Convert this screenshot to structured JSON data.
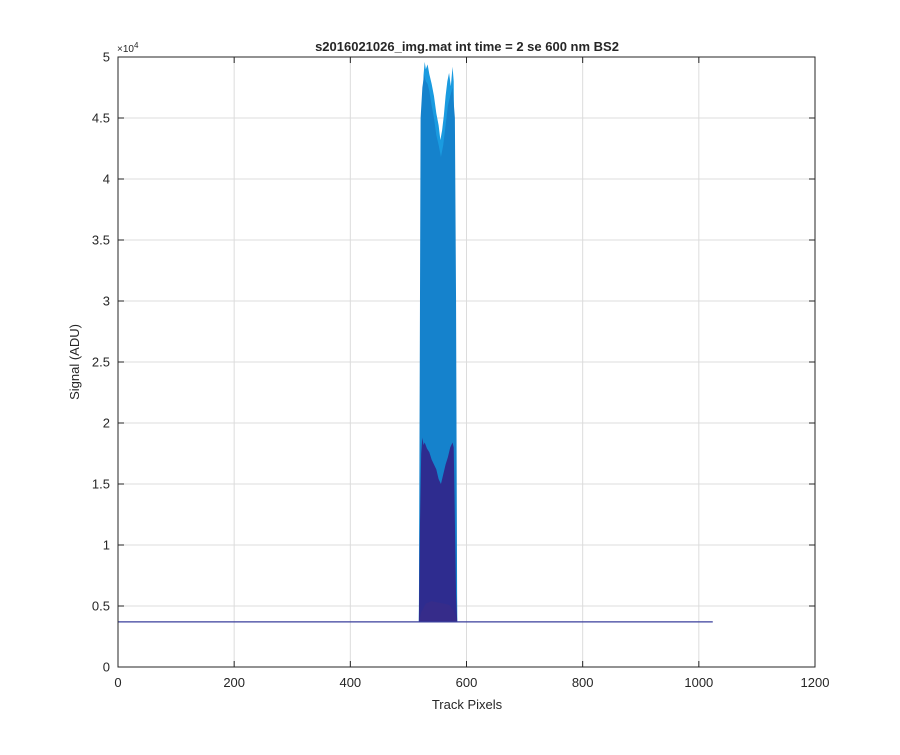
{
  "chart_data": {
    "type": "area",
    "title": "s2016021026_img.mat int time = 2 se  600 nm BS2",
    "xlabel": "Track Pixels",
    "ylabel": "Signal (ADU)",
    "xlim": [
      0,
      1200
    ],
    "ylim": [
      0,
      50000
    ],
    "y_exponent_label": "×10",
    "y_exponent_power": "4",
    "grid": true,
    "legend": "none",
    "xticks": [
      0,
      200,
      400,
      600,
      800,
      1000,
      1200
    ],
    "xtick_labels": [
      "0",
      "200",
      "400",
      "600",
      "800",
      "1000",
      "1200"
    ],
    "yticks": [
      0,
      5000,
      10000,
      15000,
      20000,
      25000,
      30000,
      35000,
      40000,
      45000,
      50000
    ],
    "ytick_labels": [
      "0",
      "0.5",
      "1",
      "1.5",
      "2",
      "2.5",
      "3",
      "3.5",
      "4",
      "4.5",
      "5"
    ],
    "baseline": 3700,
    "baseline_x_range": [
      0,
      1024
    ],
    "colors": {
      "light": "#1a9be0",
      "mid": "#1582cc",
      "dark": "#2e2c8f",
      "darker": "#362c8a",
      "line": "#3a3f9c",
      "grid": "#dcdcdc",
      "axis": "#262626"
    },
    "series": [
      {
        "x": [
          518,
          520,
          522,
          524,
          526,
          528,
          530,
          533,
          536,
          540,
          544,
          548,
          552,
          555,
          558,
          561,
          564,
          567,
          570,
          573,
          576,
          578,
          580,
          582,
          584
        ],
        "values": [
          3700,
          20000,
          37000,
          45000,
          48500,
          49600,
          49000,
          49400,
          48600,
          47800,
          46800,
          45400,
          44400,
          43200,
          44000,
          45200,
          46800,
          48000,
          48700,
          47600,
          49200,
          48000,
          35000,
          15000,
          3700
        ]
      },
      {
        "x": [
          518,
          521,
          524,
          527,
          530,
          533,
          536,
          540,
          544,
          548,
          552,
          556,
          560,
          564,
          568,
          572,
          576,
          580,
          582,
          584
        ],
        "values": [
          3700,
          45000,
          47500,
          48500,
          48000,
          47800,
          47200,
          46000,
          45000,
          43600,
          42800,
          41800,
          42800,
          44400,
          46000,
          46800,
          47500,
          45000,
          30000,
          3700
        ]
      },
      {
        "x": [
          518,
          520,
          522,
          524,
          526,
          528,
          532,
          536,
          540,
          544,
          548,
          552,
          556,
          560,
          564,
          568,
          572,
          576,
          578,
          580,
          582,
          584
        ],
        "values": [
          3700,
          12000,
          17500,
          18800,
          18200,
          18400,
          17900,
          17600,
          17000,
          16600,
          16200,
          15400,
          15000,
          15800,
          16600,
          17200,
          18000,
          18400,
          18000,
          12000,
          6000,
          3700
        ]
      },
      {
        "x": [
          518,
          522,
          530,
          540,
          550,
          560,
          570,
          578,
          584
        ],
        "values": [
          3700,
          4500,
          5200,
          5400,
          5300,
          5200,
          5100,
          4600,
          3700
        ]
      }
    ]
  }
}
